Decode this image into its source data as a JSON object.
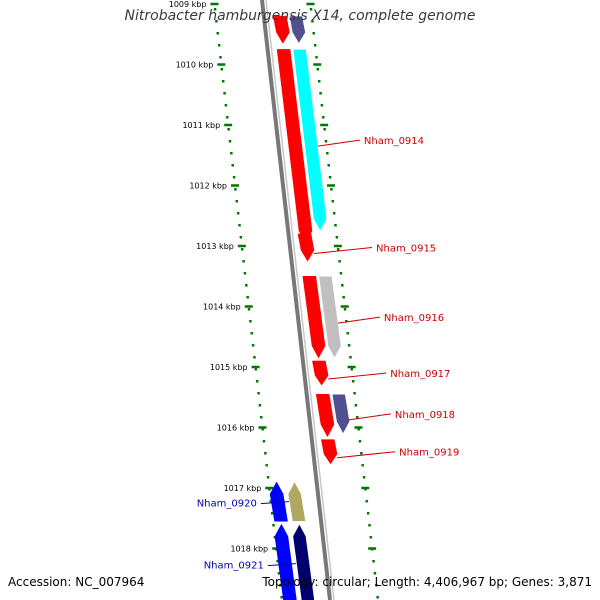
{
  "title": "Nitrobacter hamburgensis X14, complete genome",
  "accession_label": "Accession: NC_007964",
  "summary_label": "Topology: circular; Length: 4,406,967 bp; Genes: 3,871",
  "colors": {
    "forward_gene": "#ff0000",
    "reverse_gene": "#0000ff",
    "backbone": "#808080",
    "tick": "#007700",
    "label_forward": "#cc0000",
    "label_reverse": "#0000bb",
    "cds_cyan": "#00ffff",
    "cds_slate": "#505090",
    "cds_grey": "#c0c0c0",
    "cds_olive": "#b0a860",
    "cds_navy": "#000070"
  },
  "axis": {
    "unit": "kbp",
    "ticks": [
      {
        "value": 1009,
        "label": "1009 kbp"
      },
      {
        "value": 1010,
        "label": "1010 kbp"
      },
      {
        "value": 1011,
        "label": "1011 kbp"
      },
      {
        "value": 1012,
        "label": "1012 kbp"
      },
      {
        "value": 1013,
        "label": "1013 kbp"
      },
      {
        "value": 1014,
        "label": "1014 kbp"
      },
      {
        "value": 1015,
        "label": "1015 kbp"
      },
      {
        "value": 1016,
        "label": "1016 kbp"
      },
      {
        "value": 1017,
        "label": "1017 kbp"
      },
      {
        "value": 1018,
        "label": "1018 kbp"
      }
    ]
  },
  "genes": [
    {
      "start": 1009.2,
      "end": 1009.65,
      "strand": "+",
      "track": "gene",
      "color": "forward_gene",
      "label": ""
    },
    {
      "start": 1009.2,
      "end": 1009.65,
      "strand": "+",
      "track": "cds",
      "color": "cds_slate",
      "label": ""
    },
    {
      "start": 1009.75,
      "end": 1012.95,
      "strand": "+",
      "track": "gene",
      "color": "forward_gene",
      "label": ""
    },
    {
      "start": 1009.75,
      "end": 1012.75,
      "strand": "+",
      "track": "cds",
      "color": "cds_cyan",
      "label": "Nham_0914"
    },
    {
      "start": 1012.8,
      "end": 1013.25,
      "strand": "+",
      "track": "gene",
      "color": "forward_gene",
      "label": "Nham_0915"
    },
    {
      "start": 1013.5,
      "end": 1014.85,
      "strand": "+",
      "track": "gene",
      "color": "forward_gene",
      "label": ""
    },
    {
      "start": 1013.5,
      "end": 1014.85,
      "strand": "+",
      "track": "cds",
      "color": "cds_grey",
      "label": "Nham_0916"
    },
    {
      "start": 1014.9,
      "end": 1015.3,
      "strand": "+",
      "track": "gene",
      "color": "forward_gene",
      "label": "Nham_0917"
    },
    {
      "start": 1015.45,
      "end": 1016.15,
      "strand": "+",
      "track": "gene",
      "color": "forward_gene",
      "label": ""
    },
    {
      "start": 1015.45,
      "end": 1016.1,
      "strand": "+",
      "track": "cds",
      "color": "cds_slate",
      "label": "Nham_0918"
    },
    {
      "start": 1016.2,
      "end": 1016.6,
      "strand": "+",
      "track": "gene",
      "color": "forward_gene",
      "label": "Nham_0919"
    },
    {
      "start": 1016.9,
      "end": 1017.55,
      "strand": "-",
      "track": "gene",
      "color": "reverse_gene",
      "label": ""
    },
    {
      "start": 1016.9,
      "end": 1017.55,
      "strand": "-",
      "track": "cds",
      "color": "cds_olive",
      "label": "Nham_0920"
    },
    {
      "start": 1017.6,
      "end": 1018.9,
      "strand": "-",
      "track": "gene",
      "color": "reverse_gene",
      "label": ""
    },
    {
      "start": 1017.6,
      "end": 1018.9,
      "strand": "-",
      "track": "cds",
      "color": "cds_navy",
      "label": "Nham_0921"
    }
  ]
}
